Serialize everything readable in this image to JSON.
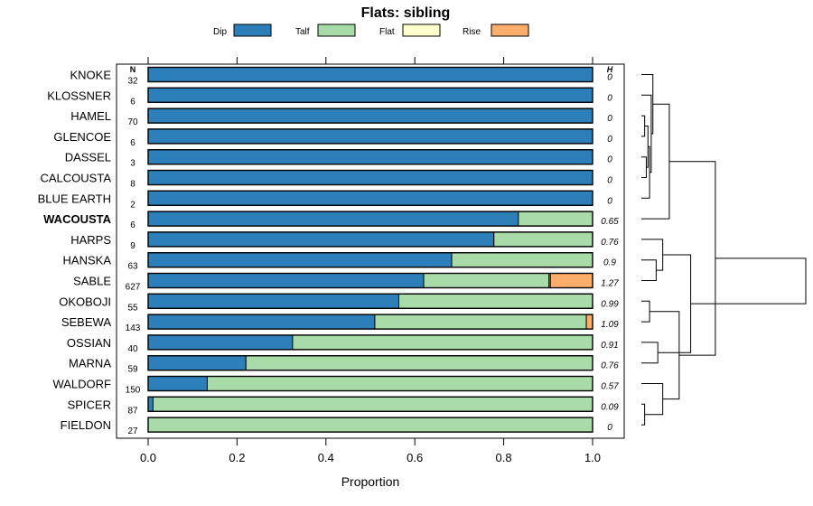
{
  "chart_data": {
    "type": "bar",
    "subtype": "stacked-horizontal-proportion",
    "title": "Flats: sibling",
    "xlabel": "Proportion",
    "xlim": [
      0,
      1
    ],
    "xticks": [
      "0.0",
      "0.2",
      "0.4",
      "0.6",
      "0.8",
      "1.0"
    ],
    "n_header": "N",
    "h_header": "H",
    "legend": [
      {
        "name": "Dip",
        "color": "#2c7fb8"
      },
      {
        "name": "Talf",
        "color": "#a8dba8"
      },
      {
        "name": "Flat",
        "color": "#ffffcc"
      },
      {
        "name": "Rise",
        "color": "#fdae6b"
      }
    ],
    "rows": [
      {
        "label": "KNOKE",
        "n": "32",
        "h": "0",
        "values": [
          1.0,
          0,
          0,
          0
        ],
        "bold": false
      },
      {
        "label": "KLOSSNER",
        "n": "6",
        "h": "0",
        "values": [
          1.0,
          0,
          0,
          0
        ],
        "bold": false
      },
      {
        "label": "HAMEL",
        "n": "70",
        "h": "0",
        "values": [
          1.0,
          0,
          0,
          0
        ],
        "bold": false
      },
      {
        "label": "GLENCOE",
        "n": "6",
        "h": "0",
        "values": [
          1.0,
          0,
          0,
          0
        ],
        "bold": false
      },
      {
        "label": "DASSEL",
        "n": "3",
        "h": "0",
        "values": [
          1.0,
          0,
          0,
          0
        ],
        "bold": false
      },
      {
        "label": "CALCOUSTA",
        "n": "8",
        "h": "0",
        "values": [
          1.0,
          0,
          0,
          0
        ],
        "bold": false
      },
      {
        "label": "BLUE EARTH",
        "n": "2",
        "h": "0",
        "values": [
          1.0,
          0,
          0,
          0
        ],
        "bold": false
      },
      {
        "label": "WACOUSTA",
        "n": "6",
        "h": "0.65",
        "values": [
          0.833,
          0.167,
          0,
          0
        ],
        "bold": true
      },
      {
        "label": "HARPS",
        "n": "9",
        "h": "0.76",
        "values": [
          0.778,
          0.222,
          0,
          0
        ],
        "bold": false
      },
      {
        "label": "HANSKA",
        "n": "63",
        "h": "0.9",
        "values": [
          0.683,
          0.317,
          0,
          0
        ],
        "bold": false
      },
      {
        "label": "SABLE",
        "n": "627",
        "h": "1.27",
        "values": [
          0.62,
          0.282,
          0.003,
          0.095
        ],
        "bold": false
      },
      {
        "label": "OKOBOJI",
        "n": "55",
        "h": "0.99",
        "values": [
          0.564,
          0.436,
          0,
          0
        ],
        "bold": false
      },
      {
        "label": "SEBEWA",
        "n": "143",
        "h": "1.09",
        "values": [
          0.51,
          0.476,
          0,
          0.014
        ],
        "bold": false
      },
      {
        "label": "OSSIAN",
        "n": "40",
        "h": "0.91",
        "values": [
          0.325,
          0.675,
          0,
          0
        ],
        "bold": false
      },
      {
        "label": "MARNA",
        "n": "59",
        "h": "0.76",
        "values": [
          0.22,
          0.78,
          0,
          0
        ],
        "bold": false
      },
      {
        "label": "WALDORF",
        "n": "150",
        "h": "0.57",
        "values": [
          0.133,
          0.867,
          0,
          0
        ],
        "bold": false
      },
      {
        "label": "SPICER",
        "n": "87",
        "h": "0.09",
        "values": [
          0.011,
          0.989,
          0,
          0
        ],
        "bold": false
      },
      {
        "label": "FIELDON",
        "n": "27",
        "h": "0",
        "values": [
          0,
          1.0,
          0,
          0
        ],
        "bold": false
      }
    ],
    "dendrogram": {
      "leaf_order": [
        "KNOKE",
        "KLOSSNER",
        "HAMEL",
        "GLENCOE",
        "DASSEL",
        "CALCOUSTA",
        "BLUE EARTH",
        "WACOUSTA",
        "HARPS",
        "HANSKA",
        "SABLE",
        "OKOBOJI",
        "SEBEWA",
        "OSSIAN",
        "MARNA",
        "WALDORF",
        "SPICER",
        "FIELDON"
      ],
      "merges": [
        {
          "a": 2,
          "b": 3,
          "height": 0.02
        },
        {
          "a": 16,
          "b": 17,
          "height": 0.02
        },
        {
          "a": 4,
          "b": 5,
          "height": 0.03
        },
        {
          "a": -1,
          "b": -3,
          "height": 0.04
        },
        {
          "a": 6,
          "b": -4,
          "height": 0.05
        },
        {
          "a": 11,
          "b": 12,
          "height": 0.05
        },
        {
          "a": 1,
          "b": -5,
          "height": 0.06
        },
        {
          "a": 0,
          "b": -7,
          "height": 0.07
        },
        {
          "a": 9,
          "b": 10,
          "height": 0.09
        },
        {
          "a": 13,
          "b": 14,
          "height": 0.1
        },
        {
          "a": 15,
          "b": -2,
          "height": 0.13
        },
        {
          "a": 8,
          "b": -9,
          "height": 0.13
        },
        {
          "a": -11,
          "b": -6,
          "height": 0.23
        },
        {
          "a": 7,
          "b": -8,
          "height": 0.17
        },
        {
          "a": -10,
          "b": -12,
          "height": 0.3
        },
        {
          "a": -13,
          "b": -14,
          "height": 0.45
        },
        {
          "a": -16,
          "b": -15,
          "height": 1.0
        }
      ]
    }
  }
}
